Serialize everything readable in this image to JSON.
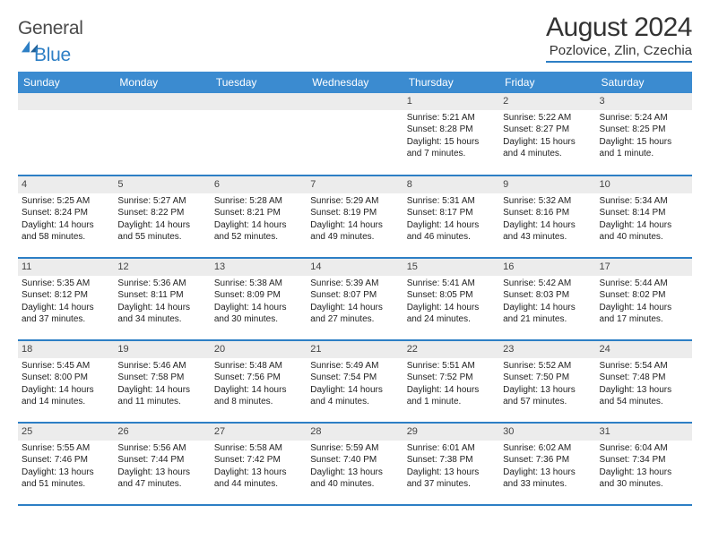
{
  "brand": {
    "general": "General",
    "blue": "Blue",
    "accent": "#2d7fc5"
  },
  "header": {
    "title": "August 2024",
    "location": "Pozlovice, Zlin, Czechia"
  },
  "colors": {
    "header_bg": "#3b8bd0",
    "header_text": "#ffffff",
    "daynum_bg": "#ececec",
    "row_border": "#2d7fc5",
    "text": "#222222",
    "page_bg": "#ffffff"
  },
  "daysOfWeek": [
    "Sunday",
    "Monday",
    "Tuesday",
    "Wednesday",
    "Thursday",
    "Friday",
    "Saturday"
  ],
  "weeks": [
    [
      null,
      null,
      null,
      null,
      {
        "n": "1",
        "sr": "5:21 AM",
        "ss": "8:28 PM",
        "dl": "15 hours and 7 minutes."
      },
      {
        "n": "2",
        "sr": "5:22 AM",
        "ss": "8:27 PM",
        "dl": "15 hours and 4 minutes."
      },
      {
        "n": "3",
        "sr": "5:24 AM",
        "ss": "8:25 PM",
        "dl": "15 hours and 1 minute."
      }
    ],
    [
      {
        "n": "4",
        "sr": "5:25 AM",
        "ss": "8:24 PM",
        "dl": "14 hours and 58 minutes."
      },
      {
        "n": "5",
        "sr": "5:27 AM",
        "ss": "8:22 PM",
        "dl": "14 hours and 55 minutes."
      },
      {
        "n": "6",
        "sr": "5:28 AM",
        "ss": "8:21 PM",
        "dl": "14 hours and 52 minutes."
      },
      {
        "n": "7",
        "sr": "5:29 AM",
        "ss": "8:19 PM",
        "dl": "14 hours and 49 minutes."
      },
      {
        "n": "8",
        "sr": "5:31 AM",
        "ss": "8:17 PM",
        "dl": "14 hours and 46 minutes."
      },
      {
        "n": "9",
        "sr": "5:32 AM",
        "ss": "8:16 PM",
        "dl": "14 hours and 43 minutes."
      },
      {
        "n": "10",
        "sr": "5:34 AM",
        "ss": "8:14 PM",
        "dl": "14 hours and 40 minutes."
      }
    ],
    [
      {
        "n": "11",
        "sr": "5:35 AM",
        "ss": "8:12 PM",
        "dl": "14 hours and 37 minutes."
      },
      {
        "n": "12",
        "sr": "5:36 AM",
        "ss": "8:11 PM",
        "dl": "14 hours and 34 minutes."
      },
      {
        "n": "13",
        "sr": "5:38 AM",
        "ss": "8:09 PM",
        "dl": "14 hours and 30 minutes."
      },
      {
        "n": "14",
        "sr": "5:39 AM",
        "ss": "8:07 PM",
        "dl": "14 hours and 27 minutes."
      },
      {
        "n": "15",
        "sr": "5:41 AM",
        "ss": "8:05 PM",
        "dl": "14 hours and 24 minutes."
      },
      {
        "n": "16",
        "sr": "5:42 AM",
        "ss": "8:03 PM",
        "dl": "14 hours and 21 minutes."
      },
      {
        "n": "17",
        "sr": "5:44 AM",
        "ss": "8:02 PM",
        "dl": "14 hours and 17 minutes."
      }
    ],
    [
      {
        "n": "18",
        "sr": "5:45 AM",
        "ss": "8:00 PM",
        "dl": "14 hours and 14 minutes."
      },
      {
        "n": "19",
        "sr": "5:46 AM",
        "ss": "7:58 PM",
        "dl": "14 hours and 11 minutes."
      },
      {
        "n": "20",
        "sr": "5:48 AM",
        "ss": "7:56 PM",
        "dl": "14 hours and 8 minutes."
      },
      {
        "n": "21",
        "sr": "5:49 AM",
        "ss": "7:54 PM",
        "dl": "14 hours and 4 minutes."
      },
      {
        "n": "22",
        "sr": "5:51 AM",
        "ss": "7:52 PM",
        "dl": "14 hours and 1 minute."
      },
      {
        "n": "23",
        "sr": "5:52 AM",
        "ss": "7:50 PM",
        "dl": "13 hours and 57 minutes."
      },
      {
        "n": "24",
        "sr": "5:54 AM",
        "ss": "7:48 PM",
        "dl": "13 hours and 54 minutes."
      }
    ],
    [
      {
        "n": "25",
        "sr": "5:55 AM",
        "ss": "7:46 PM",
        "dl": "13 hours and 51 minutes."
      },
      {
        "n": "26",
        "sr": "5:56 AM",
        "ss": "7:44 PM",
        "dl": "13 hours and 47 minutes."
      },
      {
        "n": "27",
        "sr": "5:58 AM",
        "ss": "7:42 PM",
        "dl": "13 hours and 44 minutes."
      },
      {
        "n": "28",
        "sr": "5:59 AM",
        "ss": "7:40 PM",
        "dl": "13 hours and 40 minutes."
      },
      {
        "n": "29",
        "sr": "6:01 AM",
        "ss": "7:38 PM",
        "dl": "13 hours and 37 minutes."
      },
      {
        "n": "30",
        "sr": "6:02 AM",
        "ss": "7:36 PM",
        "dl": "13 hours and 33 minutes."
      },
      {
        "n": "31",
        "sr": "6:04 AM",
        "ss": "7:34 PM",
        "dl": "13 hours and 30 minutes."
      }
    ]
  ],
  "labels": {
    "sunrise": "Sunrise: ",
    "sunset": "Sunset: ",
    "daylight": "Daylight: "
  }
}
